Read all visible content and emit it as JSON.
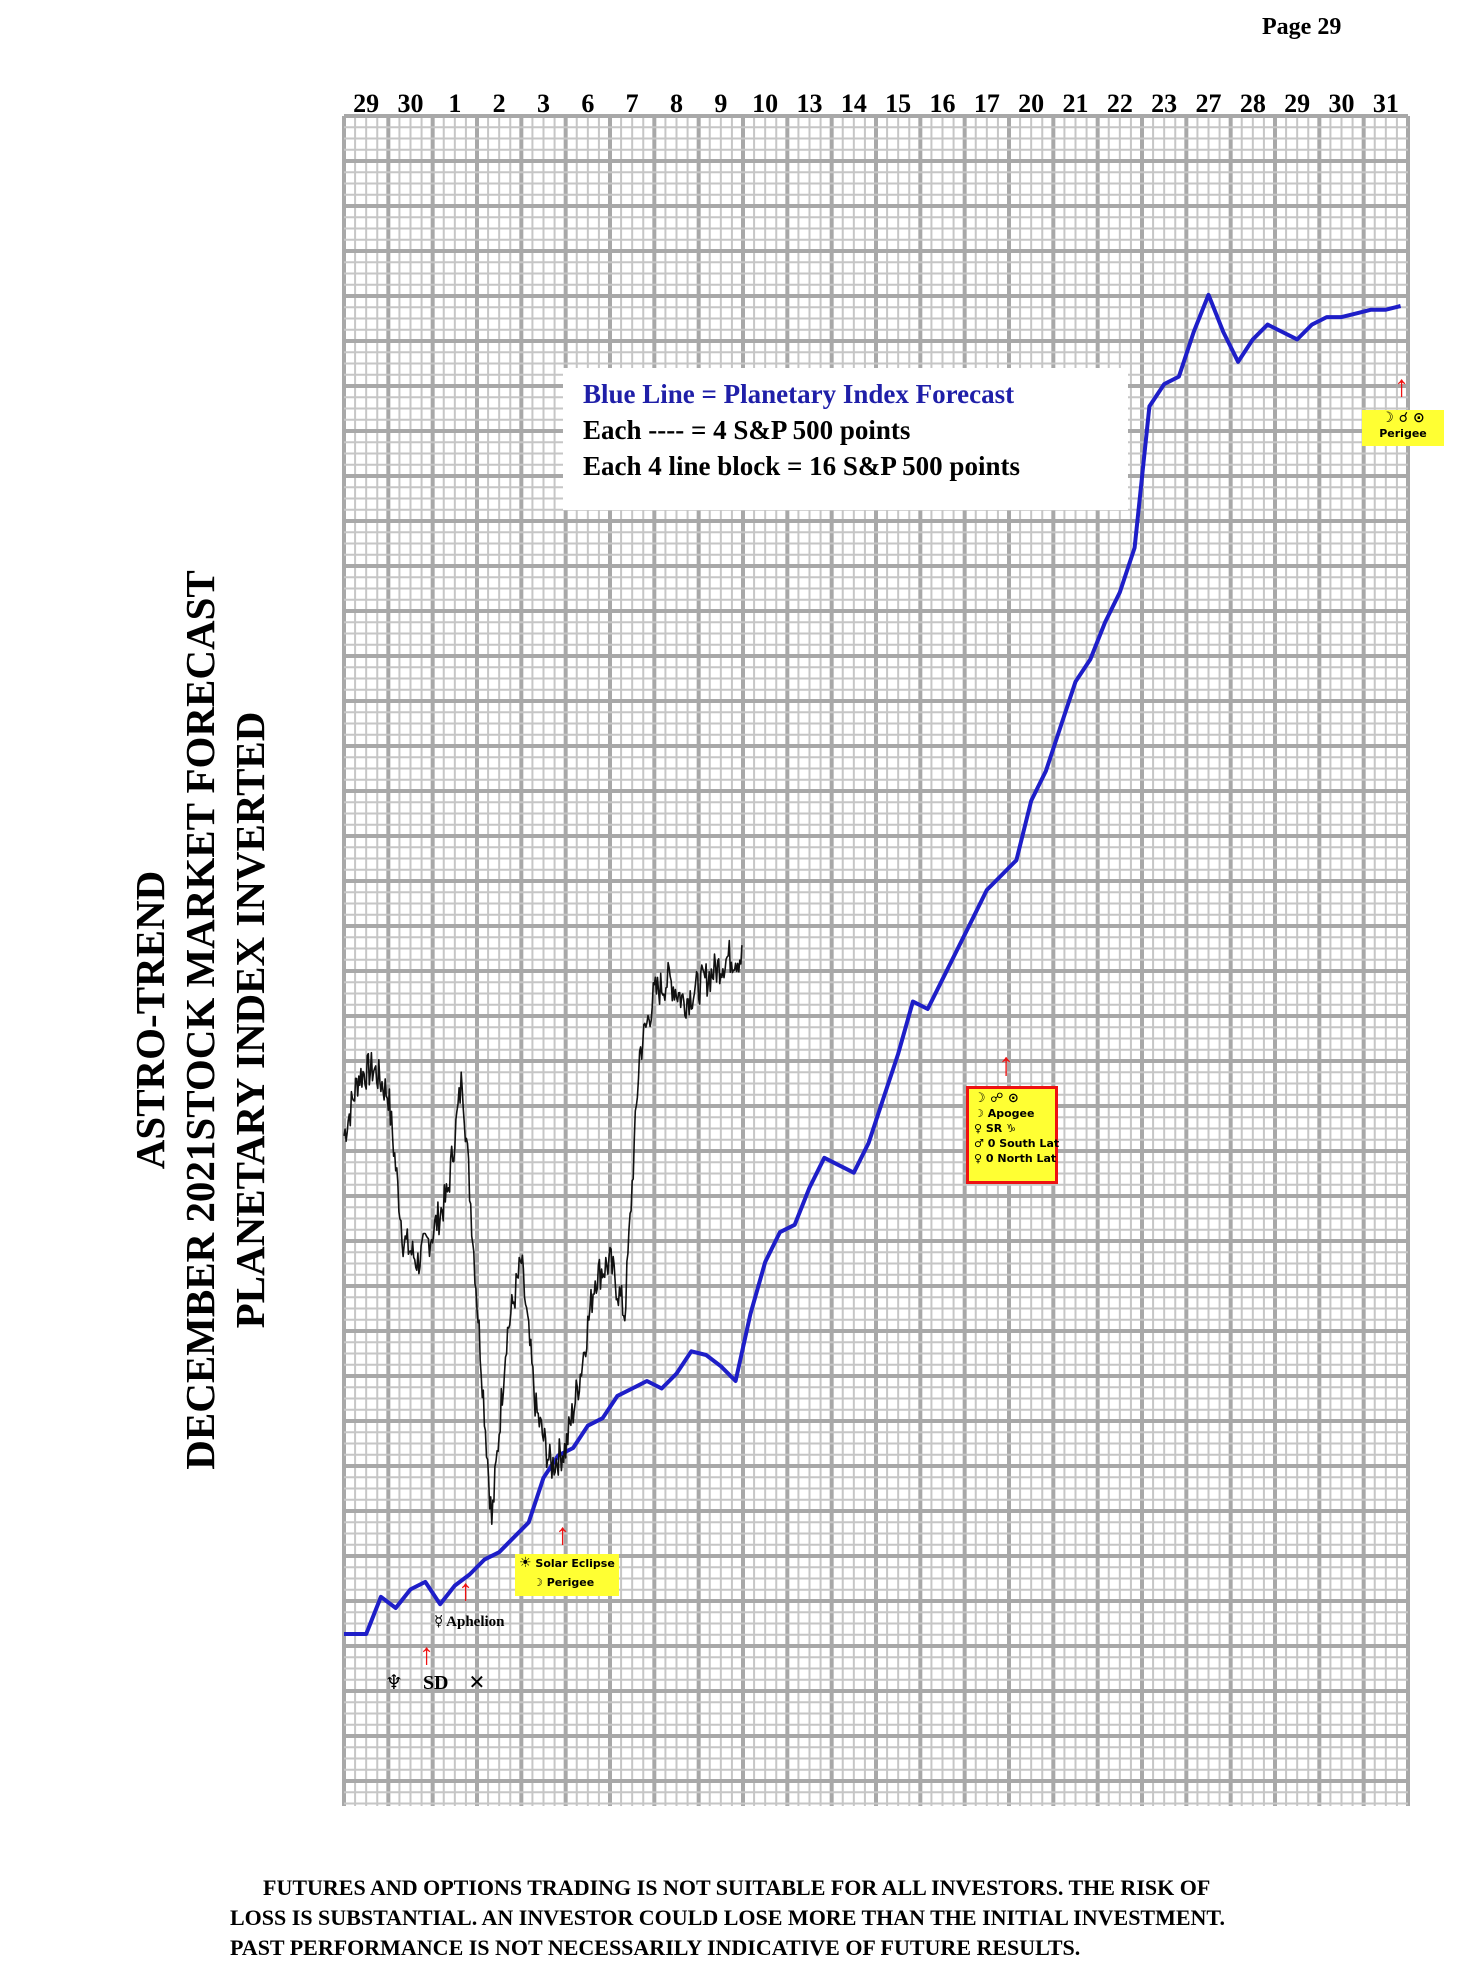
{
  "page": {
    "page_number": "Page  29"
  },
  "title": {
    "line1": "ASTRO-TREND",
    "line2": "DECEMBER 2021STOCK MARKET FORECAST",
    "line3": "PLANETARY INDEX INVERTED"
  },
  "legend": {
    "line1": "Blue Line = Planetary Index Forecast",
    "line2": "Each ---- =   4 S&P 500 points",
    "line3": "Each 4 line block =  16  S&P 500 points"
  },
  "annotations": {
    "neptune_sd": {
      "symbols": [
        "♆",
        "SD",
        "✕"
      ]
    },
    "mercury_aphelion": {
      "symbol": "☿",
      "label": "Aphelion"
    },
    "solar_eclipse": {
      "symbol": "☀",
      "label1": "Solar Eclipse",
      "moon": "☽",
      "label2": "Perigee"
    },
    "apogee": {
      "row1": "☽  ☍  ⊙",
      "row2_sym": "☽",
      "row2": "Apogee",
      "row3": "♀   SR   ♑",
      "row4_sym": "♂",
      "row4": "0 South Lat",
      "row5_sym": "♀",
      "row5": "0 North Lat"
    },
    "perigee_end": {
      "row1": "☽ ☌ ⊙",
      "label": "Perigee"
    }
  },
  "colors": {
    "forecast_line": "#1e1ec8",
    "grid_major": "#a8a8a8",
    "grid_minor": "#c6c6c6",
    "arrow": "#ee1111",
    "tag": "#ffff33"
  },
  "disclaimer": {
    "line1": "FUTURES AND OPTIONS TRADING IS NOT SUITABLE FOR ALL INVESTORS.  THE RISK OF",
    "line2": "LOSS IS SUBSTANTIAL.  AN INVESTOR COULD LOSE MORE THAN THE INITIAL INVESTMENT.",
    "line3": "PAST PERFORMANCE IS NOT NECESSARILY INDICATIVE OF FUTURE RESULTS."
  },
  "chart_data": {
    "type": "line",
    "title": "",
    "xlabel": "",
    "ylabel": "",
    "grid": true,
    "categories": [
      "29",
      "30",
      "1",
      "2",
      "3",
      "6",
      "7",
      "8",
      "9",
      "10",
      "13",
      "14",
      "15",
      "16",
      "17",
      "20",
      "21",
      "22",
      "23",
      "27",
      "28",
      "29",
      "30",
      "31"
    ],
    "y_axis_note": "inverted scale, unlabeled; values are S&P 500 point offsets (4 points per line, 16 per block)",
    "series": [
      {
        "name": "Blue Line = Planetary Index Forecast",
        "values_by_day": [
          {
            "day": "29",
            "points": [
              0,
              0,
              10
            ]
          },
          {
            "day": "30",
            "points": [
              7,
              12,
              14
            ]
          },
          {
            "day": "1",
            "points": [
              8,
              13,
              16
            ]
          },
          {
            "day": "2",
            "points": [
              20,
              22,
              26
            ]
          },
          {
            "day": "3",
            "points": [
              30,
              42,
              48
            ]
          },
          {
            "day": "6",
            "points": [
              50,
              56,
              58
            ]
          },
          {
            "day": "7",
            "points": [
              64,
              66,
              68
            ]
          },
          {
            "day": "8",
            "points": [
              66,
              70,
              76
            ]
          },
          {
            "day": "9",
            "points": [
              75,
              72,
              68
            ]
          },
          {
            "day": "10",
            "points": [
              86,
              100,
              108
            ]
          },
          {
            "day": "13",
            "points": [
              110,
              120,
              128
            ]
          },
          {
            "day": "14",
            "points": [
              126,
              124,
              132
            ]
          },
          {
            "day": "15",
            "points": [
              144,
              156,
              170
            ]
          },
          {
            "day": "16",
            "points": [
              168,
              176,
              184
            ]
          },
          {
            "day": "17",
            "points": [
              192,
              200,
              204
            ]
          },
          {
            "day": "20",
            "points": [
              208,
              224,
              232
            ]
          },
          {
            "day": "21",
            "points": [
              244,
              256,
              262
            ]
          },
          {
            "day": "22",
            "points": [
              272,
              280,
              292
            ]
          },
          {
            "day": "23",
            "points": [
              330,
              336,
              338
            ]
          },
          {
            "day": "27",
            "points": [
              350,
              360,
              350
            ]
          },
          {
            "day": "28",
            "points": [
              342,
              348,
              352
            ]
          },
          {
            "day": "29",
            "points": [
              350,
              348,
              352
            ]
          },
          {
            "day": "30",
            "points": [
              354,
              354,
              355
            ]
          },
          {
            "day": "31",
            "points": [
              356,
              356,
              357
            ]
          }
        ]
      },
      {
        "name": "",
        "values_by_day": [
          {
            "day": "29",
            "points": [
              134,
              150,
              152
            ]
          },
          {
            "day": "30",
            "points": [
              145,
              106,
              100
            ]
          },
          {
            "day": "1",
            "points": [
              108,
              118,
              150
            ]
          },
          {
            "day": "2",
            "points": [
              90,
              30,
              80
            ]
          },
          {
            "day": "3",
            "points": [
              100,
              60,
              45
            ]
          },
          {
            "day": "6",
            "points": [
              50,
              70,
              96
            ]
          },
          {
            "day": "7",
            "points": [
              100,
              86,
              156
            ]
          },
          {
            "day": "8",
            "points": [
              172,
              176,
              170
            ]
          },
          {
            "day": "9",
            "points": [
              174,
              178,
              182
            ]
          }
        ]
      }
    ]
  }
}
